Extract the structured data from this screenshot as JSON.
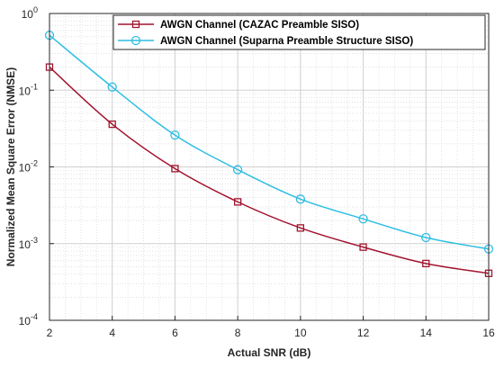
{
  "chart_data": {
    "type": "line",
    "title": "",
    "xlabel": "Actual SNR (dB)",
    "ylabel": "Normalized Mean Square Error (NMSE)",
    "x": [
      2,
      4,
      6,
      8,
      10,
      12,
      14,
      16
    ],
    "xlim": [
      2,
      16
    ],
    "ylim": [
      0.0001,
      1
    ],
    "yscale": "log",
    "grid": true,
    "legend_position": "top-right",
    "x_ticks": [
      "2",
      "4",
      "6",
      "8",
      "10",
      "12",
      "14",
      "16"
    ],
    "y_ticks": [
      {
        "base": "10",
        "exp": "-4",
        "value": 0.0001
      },
      {
        "base": "10",
        "exp": "-3",
        "value": 0.001
      },
      {
        "base": "10",
        "exp": "-2",
        "value": 0.01
      },
      {
        "base": "10",
        "exp": "-1",
        "value": 0.1
      },
      {
        "base": "10",
        "exp": "0",
        "value": 1
      }
    ],
    "series": [
      {
        "name": "AWGN Channel (CAZAC Preamble SISO)",
        "color": "#a2142f",
        "marker": "square",
        "values": [
          0.2,
          0.036,
          0.0095,
          0.0035,
          0.0016,
          0.0009,
          0.00055,
          0.00041
        ]
      },
      {
        "name": "AWGN Channel (Suparna Preamble Structure SISO)",
        "color": "#2fbee3",
        "marker": "circle",
        "values": [
          0.52,
          0.11,
          0.026,
          0.0092,
          0.0038,
          0.0021,
          0.0012,
          0.00085
        ]
      }
    ]
  }
}
